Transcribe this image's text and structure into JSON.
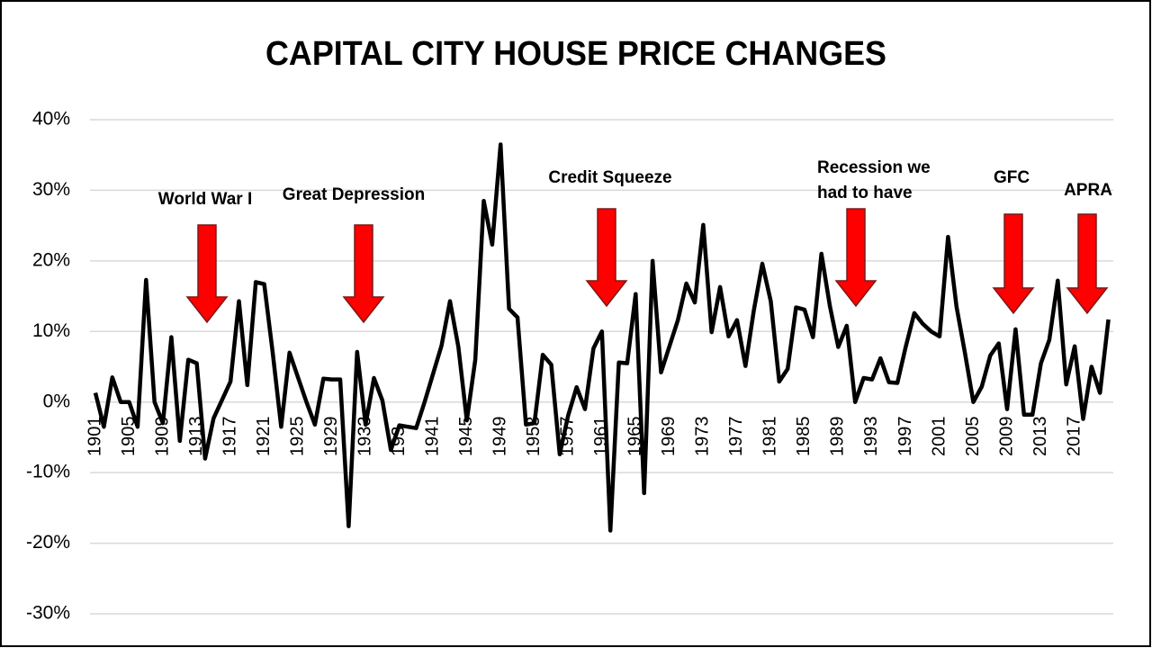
{
  "chart_data": {
    "type": "line",
    "title": "CAPITAL CITY HOUSE PRICE CHANGES",
    "categories": [
      "1901",
      null,
      null,
      null,
      "1905",
      null,
      null,
      null,
      "1909",
      null,
      null,
      null,
      "1913",
      null,
      null,
      null,
      "1917",
      null,
      null,
      null,
      "1921",
      null,
      null,
      null,
      "1925",
      null,
      null,
      null,
      "1929",
      null,
      null,
      null,
      "1933",
      null,
      null,
      null,
      "193",
      null,
      null,
      null,
      "1941",
      null,
      null,
      null,
      "1945",
      null,
      null,
      null,
      "1949",
      null,
      null,
      null,
      "1953",
      null,
      null,
      null,
      "1957",
      null,
      null,
      null,
      "1961",
      null,
      null,
      null,
      "1965",
      null,
      null,
      null,
      "1969",
      null,
      null,
      null,
      "1973",
      null,
      null,
      null,
      "1977",
      null,
      null,
      null,
      "1981",
      null,
      null,
      null,
      "1985",
      null,
      null,
      null,
      "1989",
      null,
      null,
      null,
      "1993",
      null,
      null,
      null,
      "1997",
      null,
      null,
      null,
      "2001",
      null,
      null,
      null,
      "2005",
      null,
      null,
      null,
      "2009",
      null,
      null,
      null,
      "2013",
      null,
      null,
      null,
      "2017",
      null,
      null,
      null,
      null
    ],
    "values": [
      1.3,
      -3.5,
      3.5,
      0,
      0,
      -3.5,
      17.3,
      0,
      -3,
      9.2,
      -5.5,
      6,
      5.5,
      -8,
      -2.3,
      0.3,
      2.9,
      14.3,
      2.4,
      17,
      16.7,
      7,
      -3.5,
      7,
      3.5,
      0,
      -3.2,
      3.3,
      3.2,
      3.2,
      -17.6,
      7.1,
      -3.2,
      3.4,
      0.2,
      -6.8,
      -3.3,
      -3.5,
      -3.7,
      0,
      4,
      8,
      14.3,
      7.8,
      -2.6,
      6,
      28.5,
      22.3,
      36.5,
      13.2,
      12,
      -3.2,
      -3,
      6.7,
      5.3,
      -7.4,
      -1.9,
      2.1,
      -1,
      7.6,
      10,
      -18.2,
      5.6,
      5.5,
      15.3,
      -12.9,
      20,
      4.2,
      7.9,
      11.6,
      16.8,
      14.1,
      25.1,
      9.9,
      16.3,
      9.3,
      11.6,
      5.1,
      13,
      19.6,
      14.3,
      2.9,
      4.7,
      13.4,
      13.1,
      9.2,
      21,
      13.6,
      7.8,
      10.8,
      0,
      3.4,
      3.2,
      6.2,
      2.8,
      2.7,
      7.9,
      12.6,
      11.1,
      10,
      9.3,
      23.4,
      13.5,
      7,
      0,
      2.2,
      6.6,
      8.3,
      -1,
      10.3,
      -1.8,
      -1.8,
      5.5,
      8.8,
      17.2,
      2.5,
      7.9,
      -2.4,
      5,
      1.3,
      11.7
    ],
    "color": "#000000",
    "ylim": [
      -30,
      40
    ],
    "yticks": [
      {
        "value": -30,
        "label": "-30%"
      },
      {
        "value": -20,
        "label": "-20%"
      },
      {
        "value": -10,
        "label": "-10%"
      },
      {
        "value": 0,
        "label": "0%"
      },
      {
        "value": 10,
        "label": "10%"
      },
      {
        "value": 20,
        "label": "20%"
      },
      {
        "value": 30,
        "label": "30%"
      },
      {
        "value": 40,
        "label": "40%"
      }
    ],
    "grid": true,
    "arrow_color": "#ff0000",
    "annotations": [
      "World War I",
      "Great Depression",
      "Credit Squeeze",
      "Recession we had to have",
      "GFC",
      "APRA"
    ]
  }
}
